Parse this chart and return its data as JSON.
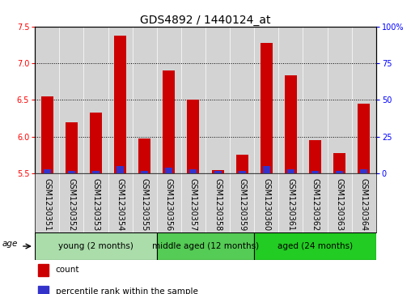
{
  "title": "GDS4892 / 1440124_at",
  "samples": [
    "GSM1230351",
    "GSM1230352",
    "GSM1230353",
    "GSM1230354",
    "GSM1230355",
    "GSM1230356",
    "GSM1230357",
    "GSM1230358",
    "GSM1230359",
    "GSM1230360",
    "GSM1230361",
    "GSM1230362",
    "GSM1230363",
    "GSM1230364"
  ],
  "count_values": [
    6.55,
    6.2,
    6.33,
    7.38,
    5.98,
    6.9,
    6.5,
    5.55,
    5.75,
    7.28,
    6.83,
    5.95,
    5.78,
    6.45
  ],
  "percentile_values": [
    3,
    2,
    2,
    5,
    2,
    4,
    3,
    2,
    2,
    5,
    3,
    2,
    2,
    3
  ],
  "ylim_left": [
    5.5,
    7.5
  ],
  "ylim_right": [
    0,
    100
  ],
  "yticks_left": [
    5.5,
    6.0,
    6.5,
    7.0,
    7.5
  ],
  "yticks_right": [
    0,
    25,
    50,
    75,
    100
  ],
  "bar_color": "#cc0000",
  "percentile_color": "#3333cc",
  "bar_width": 0.5,
  "percentile_bar_width": 0.3,
  "groups": [
    {
      "label": "young (2 months)",
      "indices": [
        0,
        1,
        2,
        3,
        4
      ],
      "color": "#aaddaa"
    },
    {
      "label": "middle aged (12 months)",
      "indices": [
        5,
        6,
        7,
        8
      ],
      "color": "#55cc55"
    },
    {
      "label": "aged (24 months)",
      "indices": [
        9,
        10,
        11,
        12,
        13
      ],
      "color": "#22cc22"
    }
  ],
  "age_label": "age",
  "legend_count_label": "count",
  "legend_percentile_label": "percentile rank within the sample",
  "title_fontsize": 10,
  "tick_label_fontsize": 7,
  "group_label_fontsize": 7.5,
  "legend_fontsize": 7.5,
  "sample_bg_color": "#d3d3d3",
  "ytick_right_labels": [
    "0",
    "25",
    "50",
    "75",
    "100%"
  ]
}
